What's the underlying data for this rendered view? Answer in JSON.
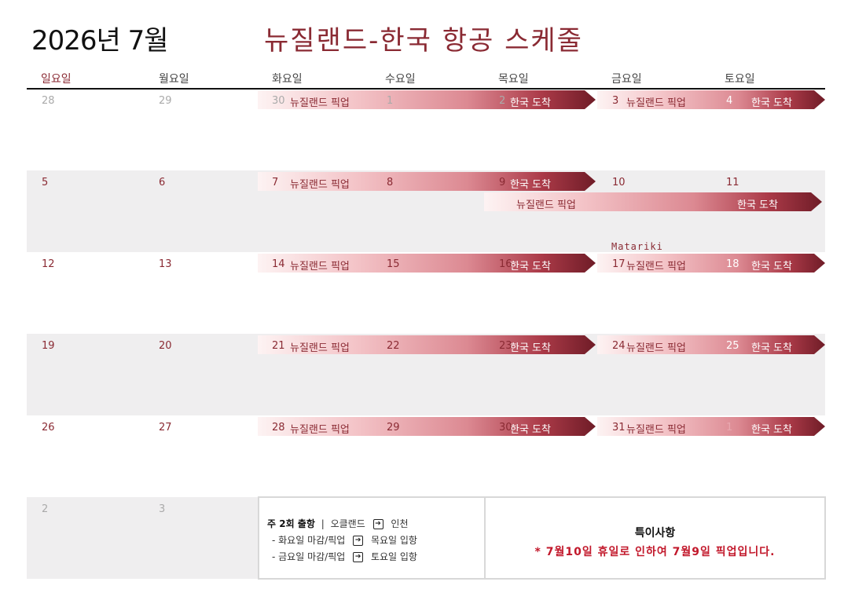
{
  "header": {
    "month": "2026년 7월",
    "title": "뉴질랜드-한국 항공 스케줄"
  },
  "weekdays": [
    "일요일",
    "월요일",
    "화요일",
    "수요일",
    "목요일",
    "금요일",
    "토요일"
  ],
  "weeks": [
    [
      "28",
      "29",
      "30",
      "1",
      "2",
      "3",
      "4"
    ],
    [
      "5",
      "6",
      "7",
      "8",
      "9",
      "10",
      "11"
    ],
    [
      "12",
      "13",
      "14",
      "15",
      "16",
      "17",
      "18"
    ],
    [
      "19",
      "20",
      "21",
      "22",
      "23",
      "24",
      "25"
    ],
    [
      "26",
      "27",
      "28",
      "29",
      "30",
      "31",
      "1"
    ],
    [
      "2",
      "3"
    ]
  ],
  "labels": {
    "pickup": "뉴질랜드 픽업",
    "arrival": "한국 도착"
  },
  "holiday": "Matariki",
  "footer": {
    "schedule_heading": "주 2회 출항",
    "schedule_sep": "|",
    "route_from": "오클랜드",
    "route_to": "인천",
    "arrow_glyph": "➔",
    "line_tue_a": "- 화요일 마감/픽업",
    "line_tue_b": "목요일 입항",
    "line_fri_a": "- 금요일 마감/픽업",
    "line_fri_b": "토요일 입항",
    "note_title": "특이사항",
    "note_body": "* 7월10일 휴일로 인하여 7월9일 픽업입니다."
  }
}
